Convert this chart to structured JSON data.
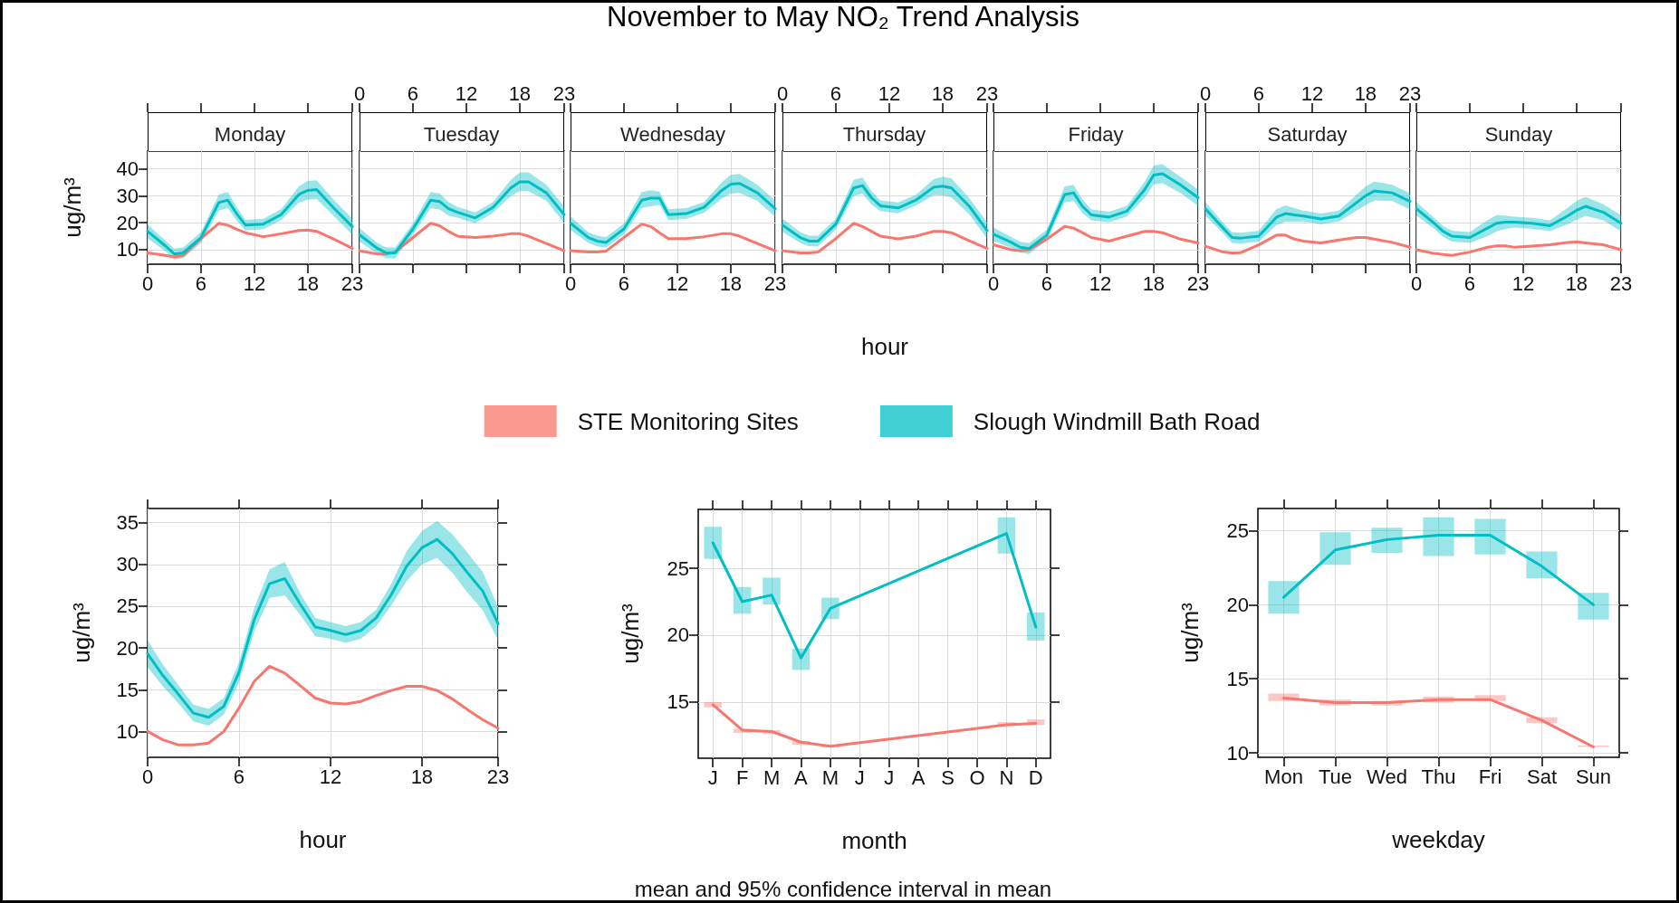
{
  "chart_data": [
    {
      "type": "line",
      "subtitle": "Monday",
      "ylabel": "ug/m³",
      "x": [
        0,
        2,
        3,
        4,
        6,
        8,
        9,
        10,
        11,
        13,
        15,
        17,
        18,
        19,
        21,
        23
      ],
      "xlim": [
        0,
        23
      ],
      "xticks": [
        0,
        6,
        12,
        18,
        23
      ],
      "ylim": [
        4.6,
        46.6
      ],
      "yticks": [
        10,
        20,
        30,
        40
      ],
      "grid": true,
      "series": [
        {
          "color": "#f8766d",
          "values": [
            8.8,
            7.9,
            7.3,
            7.9,
            14.1,
            19.8,
            19.1,
            17.6,
            16.3,
            14.8,
            15.9,
            17.1,
            17.3,
            16.8,
            13.8,
            10.5
          ]
        },
        {
          "color": "#00bfc4",
          "values": [
            16.8,
            11.4,
            8.4,
            8.8,
            14.5,
            27.5,
            28.4,
            23.4,
            19.1,
            19.5,
            23.0,
            30.5,
            32.0,
            32.3,
            25.2,
            18.6
          ],
          "lower": [
            14.3,
            9.4,
            6.4,
            6.8,
            12.5,
            24.5,
            25.4,
            20.9,
            17.1,
            17.5,
            21.0,
            27.5,
            28.5,
            28.8,
            22.2,
            15.6
          ],
          "upper": [
            19.3,
            13.4,
            10.4,
            10.8,
            16.5,
            30.5,
            31.4,
            25.9,
            21.1,
            21.5,
            25.0,
            33.5,
            35.5,
            35.8,
            28.2,
            21.6
          ]
        }
      ]
    },
    {
      "type": "line",
      "subtitle": "Tuesday",
      "x": [
        0,
        2,
        3,
        4,
        6,
        8,
        9,
        10,
        11,
        13,
        15,
        17,
        18,
        19,
        21,
        23
      ],
      "xlim": [
        0,
        23
      ],
      "xticks": [
        0,
        6,
        12,
        18,
        23
      ],
      "ylim": [
        4.6,
        46.6
      ],
      "yticks": [
        10,
        20,
        30,
        40
      ],
      "grid": true,
      "tick_labels": "x",
      "series": [
        {
          "color": "#f8766d",
          "values": [
            9.6,
            8.4,
            8.4,
            9.1,
            14.5,
            19.8,
            18.9,
            16.8,
            15.0,
            14.5,
            15.0,
            15.9,
            15.9,
            15.0,
            12.3,
            9.6
          ]
        },
        {
          "color": "#00bfc4",
          "values": [
            15.5,
            10.5,
            8.8,
            8.8,
            17.7,
            28.4,
            27.9,
            25.2,
            23.9,
            21.8,
            25.7,
            32.9,
            35.2,
            35.2,
            31.1,
            23.0
          ],
          "lower": [
            13.0,
            8.5,
            6.8,
            6.8,
            15.7,
            25.4,
            24.9,
            22.7,
            21.9,
            19.8,
            23.7,
            29.9,
            31.7,
            31.7,
            28.1,
            20.0
          ],
          "upper": [
            18.0,
            12.5,
            10.8,
            10.8,
            19.7,
            31.4,
            30.9,
            27.7,
            25.9,
            23.8,
            27.7,
            35.9,
            38.7,
            38.7,
            34.1,
            26.0
          ]
        }
      ]
    },
    {
      "type": "line",
      "subtitle": "Wednesday",
      "x": [
        0,
        2,
        3,
        4,
        6,
        8,
        9,
        10,
        11,
        13,
        15,
        17,
        18,
        19,
        21,
        23
      ],
      "xlim": [
        0,
        23
      ],
      "xticks": [
        0,
        6,
        12,
        18,
        23
      ],
      "ylim": [
        4.6,
        46.6
      ],
      "yticks": [
        10,
        20,
        30,
        40
      ],
      "grid": true,
      "tick_labels": "x",
      "series": [
        {
          "color": "#f8766d",
          "values": [
            9.6,
            9.1,
            9.1,
            9.5,
            14.5,
            19.5,
            18.6,
            16.3,
            14.1,
            14.1,
            14.8,
            15.9,
            15.9,
            15.0,
            12.3,
            9.6
          ]
        },
        {
          "color": "#00bfc4",
          "values": [
            19.8,
            14.5,
            13.2,
            12.7,
            17.7,
            28.4,
            29.1,
            29.1,
            23.0,
            23.4,
            25.7,
            32.0,
            34.3,
            34.6,
            31.1,
            25.2
          ],
          "lower": [
            17.3,
            12.5,
            11.2,
            10.7,
            15.7,
            25.4,
            26.1,
            26.6,
            21.0,
            21.4,
            23.7,
            29.0,
            30.8,
            31.1,
            28.1,
            22.2
          ],
          "upper": [
            22.3,
            16.5,
            15.2,
            14.7,
            19.7,
            31.4,
            32.1,
            31.6,
            25.0,
            25.4,
            27.7,
            35.0,
            37.8,
            38.1,
            34.1,
            28.2
          ]
        }
      ]
    },
    {
      "type": "line",
      "title": "November to May NO₂ Trend Analysis",
      "subtitle": "Thursday",
      "xlabel": "hour",
      "x": [
        0,
        2,
        3,
        4,
        6,
        8,
        9,
        10,
        11,
        13,
        15,
        17,
        18,
        19,
        21,
        23
      ],
      "xlim": [
        0,
        23
      ],
      "xticks": [
        0,
        6,
        12,
        18,
        23
      ],
      "ylim": [
        4.6,
        46.6
      ],
      "yticks": [
        10,
        20,
        30,
        40
      ],
      "grid": true,
      "tick_labels": "x",
      "series": [
        {
          "color": "#f8766d",
          "values": [
            9.6,
            8.8,
            8.8,
            9.1,
            14.1,
            19.8,
            18.6,
            16.8,
            15.0,
            14.0,
            15.0,
            16.8,
            16.8,
            16.3,
            13.3,
            10.4
          ]
        },
        {
          "color": "#00bfc4",
          "values": [
            19.1,
            14.5,
            13.2,
            13.2,
            19.5,
            32.9,
            33.8,
            29.3,
            26.3,
            25.5,
            28.4,
            33.2,
            33.6,
            32.9,
            26.1,
            17.1
          ],
          "lower": [
            16.6,
            12.5,
            11.2,
            11.2,
            17.5,
            29.9,
            30.8,
            26.8,
            24.3,
            23.5,
            26.4,
            30.2,
            30.1,
            29.4,
            23.1,
            14.1
          ],
          "upper": [
            21.6,
            16.5,
            15.2,
            15.2,
            21.5,
            35.9,
            36.8,
            31.8,
            28.3,
            27.5,
            30.4,
            36.2,
            37.1,
            36.4,
            29.1,
            20.1
          ]
        }
      ]
    },
    {
      "type": "line",
      "subtitle": "Friday",
      "x": [
        0,
        2,
        3,
        4,
        6,
        8,
        9,
        10,
        11,
        13,
        15,
        17,
        18,
        19,
        21,
        23
      ],
      "xlim": [
        0,
        23
      ],
      "xticks": [
        0,
        6,
        12,
        18,
        23
      ],
      "ylim": [
        4.6,
        46.6
      ],
      "yticks": [
        10,
        20,
        30,
        40
      ],
      "grid": true,
      "tick_labels": "x",
      "series": [
        {
          "color": "#f8766d",
          "values": [
            11.8,
            10.0,
            9.6,
            10.0,
            13.9,
            18.6,
            18.0,
            16.3,
            14.5,
            13.2,
            15.0,
            16.8,
            16.8,
            16.3,
            13.9,
            12.5
          ]
        },
        {
          "color": "#00bfc4",
          "values": [
            15.7,
            12.7,
            10.9,
            10.4,
            15.4,
            30.5,
            31.1,
            26.1,
            22.9,
            22.1,
            24.3,
            32.3,
            37.7,
            38.2,
            34.1,
            29.3
          ],
          "lower": [
            13.2,
            10.7,
            8.9,
            8.4,
            13.4,
            27.5,
            28.1,
            23.6,
            20.9,
            20.1,
            22.3,
            29.3,
            34.2,
            34.7,
            31.1,
            26.3
          ],
          "upper": [
            18.2,
            14.7,
            12.9,
            12.4,
            17.4,
            33.5,
            34.1,
            28.6,
            24.9,
            24.1,
            26.3,
            35.3,
            41.2,
            41.7,
            37.1,
            32.3
          ]
        }
      ]
    },
    {
      "type": "line",
      "subtitle": "Saturday",
      "x": [
        0,
        2,
        3,
        4,
        6,
        8,
        9,
        10,
        11,
        13,
        15,
        17,
        18,
        19,
        21,
        23
      ],
      "xlim": [
        0,
        23
      ],
      "xticks": [
        0,
        6,
        12,
        18,
        23
      ],
      "ylim": [
        4.6,
        46.6
      ],
      "yticks": [
        10,
        20,
        30,
        40
      ],
      "grid": true,
      "tick_labels": "x",
      "series": [
        {
          "color": "#f8766d",
          "values": [
            11.3,
            9.1,
            8.8,
            8.9,
            11.8,
            15.4,
            15.4,
            13.9,
            13.2,
            12.5,
            13.6,
            14.5,
            14.5,
            13.9,
            12.7,
            10.9
          ]
        },
        {
          "color": "#00bfc4",
          "values": [
            25.2,
            18.0,
            14.5,
            14.3,
            15.0,
            22.1,
            23.4,
            22.9,
            22.5,
            21.4,
            22.5,
            27.5,
            30.0,
            31.8,
            31.1,
            27.9
          ],
          "lower": [
            22.7,
            16.0,
            12.5,
            12.3,
            13.0,
            19.1,
            20.4,
            20.4,
            20.5,
            19.4,
            20.5,
            24.5,
            26.5,
            28.3,
            28.1,
            24.9
          ],
          "upper": [
            27.7,
            20.0,
            16.5,
            16.3,
            17.0,
            25.1,
            26.4,
            25.4,
            24.5,
            23.4,
            24.5,
            30.5,
            33.5,
            35.3,
            34.1,
            30.9
          ]
        }
      ]
    },
    {
      "type": "line",
      "subtitle": "Sunday",
      "x": [
        0,
        2,
        3,
        4,
        6,
        8,
        9,
        10,
        11,
        13,
        15,
        17,
        18,
        19,
        21,
        23
      ],
      "xlim": [
        0,
        23
      ],
      "xticks": [
        0,
        6,
        12,
        18,
        23
      ],
      "ylim": [
        4.6,
        46.6
      ],
      "yticks": [
        10,
        20,
        30,
        40
      ],
      "grid": true,
      "tick_labels": "x",
      "series": [
        {
          "color": "#f8766d",
          "values": [
            10.0,
            8.6,
            8.2,
            7.9,
            9.1,
            10.9,
            11.4,
            11.4,
            10.9,
            11.3,
            11.8,
            12.7,
            12.9,
            12.5,
            11.8,
            10.0
          ]
        },
        {
          "color": "#00bfc4",
          "values": [
            25.2,
            19.8,
            16.8,
            15.0,
            14.5,
            18.0,
            19.8,
            20.2,
            20.2,
            19.8,
            18.9,
            22.5,
            24.6,
            26.1,
            23.9,
            19.8
          ],
          "lower": [
            22.7,
            17.8,
            14.8,
            13.0,
            12.5,
            15.0,
            16.8,
            17.7,
            18.2,
            17.8,
            16.9,
            19.5,
            21.1,
            22.6,
            20.9,
            16.8
          ],
          "upper": [
            27.7,
            21.8,
            18.8,
            17.0,
            16.5,
            21.0,
            22.8,
            22.7,
            22.2,
            21.8,
            20.9,
            25.5,
            28.1,
            29.6,
            26.9,
            22.8
          ]
        }
      ]
    },
    {
      "type": "line",
      "xlabel": "hour",
      "ylabel": "ug/m³",
      "x": [
        0,
        1,
        2,
        3,
        4,
        5,
        6,
        7,
        8,
        9,
        10,
        11,
        12,
        13,
        14,
        15,
        16,
        17,
        18,
        19,
        20,
        21,
        22,
        23
      ],
      "xlim": [
        0,
        23
      ],
      "xticks": [
        0,
        6,
        12,
        18,
        23
      ],
      "ylim": [
        6.9,
        36.7
      ],
      "yticks": [
        10,
        15,
        20,
        25,
        30,
        35
      ],
      "grid": true,
      "series": [
        {
          "color": "#f8766d",
          "values": [
            10.0,
            9.0,
            8.4,
            8.4,
            8.6,
            10.0,
            12.8,
            16.0,
            17.8,
            17.0,
            15.5,
            14.0,
            13.4,
            13.3,
            13.6,
            14.3,
            14.9,
            15.4,
            15.4,
            14.9,
            13.9,
            12.6,
            11.4,
            10.4
          ]
        },
        {
          "color": "#00bfc4",
          "values": [
            19.3,
            16.7,
            14.5,
            12.2,
            11.7,
            13.0,
            17.1,
            23.4,
            27.7,
            28.3,
            25.3,
            22.5,
            22.1,
            21.6,
            22.1,
            23.6,
            26.4,
            29.8,
            32.0,
            33.0,
            31.3,
            29.0,
            26.8,
            22.9
          ],
          "lower": [
            17.7,
            15.4,
            13.4,
            11.2,
            10.7,
            12.0,
            15.9,
            22.0,
            26.0,
            26.3,
            24.0,
            21.4,
            21.1,
            20.6,
            21.1,
            22.6,
            25.1,
            28.0,
            30.0,
            30.8,
            29.0,
            26.6,
            24.5,
            20.9
          ],
          "upper": [
            20.9,
            18.0,
            15.6,
            13.2,
            12.7,
            14.0,
            18.3,
            24.8,
            29.4,
            30.3,
            26.6,
            23.6,
            23.1,
            22.6,
            23.1,
            24.6,
            27.7,
            31.6,
            34.0,
            35.2,
            33.6,
            31.4,
            29.1,
            24.9
          ]
        }
      ]
    },
    {
      "type": "line",
      "xlabel": "month",
      "ylabel": "ug/m³",
      "categories": [
        "J",
        "F",
        "M",
        "A",
        "M",
        "J",
        "J",
        "A",
        "S",
        "O",
        "N",
        "D"
      ],
      "ylim": [
        10.8,
        29.4
      ],
      "yticks": [
        15,
        20,
        25
      ],
      "grid": true,
      "legend": "top",
      "annotations": [
        "mean and 95% confidence interval in mean"
      ],
      "series": [
        {
          "name": "STE Monitoring Sites",
          "color": "#f8766d",
          "values": [
            14.8,
            12.9,
            12.8,
            12.0,
            11.7,
            null,
            null,
            null,
            null,
            null,
            13.3,
            13.4
          ],
          "errors": [
            [
              14.6,
              15.0
            ],
            [
              12.7,
              13.0
            ],
            [
              12.6,
              12.9
            ],
            [
              11.8,
              12.1
            ],
            [
              11.6,
              11.8
            ],
            null,
            null,
            null,
            null,
            null,
            [
              13.2,
              13.5
            ],
            [
              13.3,
              13.7
            ]
          ]
        },
        {
          "name": "Slough Windmill Bath Road",
          "color": "#00bfc4",
          "values": [
            26.9,
            22.5,
            23.0,
            18.3,
            22.0,
            null,
            null,
            null,
            null,
            null,
            27.6,
            20.6
          ],
          "errors": [
            [
              25.7,
              28.1
            ],
            [
              21.6,
              23.6
            ],
            [
              22.3,
              24.3
            ],
            [
              17.4,
              19.0
            ],
            [
              21.2,
              22.8
            ],
            null,
            null,
            null,
            null,
            null,
            [
              26.1,
              28.8
            ],
            [
              19.6,
              21.7
            ]
          ]
        }
      ]
    },
    {
      "type": "line",
      "xlabel": "weekday",
      "ylabel": "ug/m³",
      "categories": [
        "Mon",
        "Tue",
        "Wed",
        "Thu",
        "Fri",
        "Sat",
        "Sun"
      ],
      "ylim": [
        9.7,
        26.5
      ],
      "yticks": [
        10,
        15,
        20,
        25
      ],
      "grid": true,
      "series": [
        {
          "color": "#f8766d",
          "values": [
            13.7,
            13.4,
            13.4,
            13.6,
            13.6,
            12.2,
            10.4
          ],
          "errors": [
            [
              13.5,
              14.0
            ],
            [
              13.2,
              13.6
            ],
            [
              13.2,
              13.5
            ],
            [
              13.4,
              13.8
            ],
            [
              13.5,
              13.9
            ],
            [
              12.0,
              12.4
            ],
            [
              10.4,
              10.5
            ]
          ]
        },
        {
          "color": "#00bfc4",
          "values": [
            20.5,
            23.7,
            24.4,
            24.7,
            24.7,
            22.6,
            20.0
          ],
          "errors": [
            [
              19.4,
              21.6
            ],
            [
              22.7,
              24.9
            ],
            [
              23.5,
              25.2
            ],
            [
              23.3,
              25.9
            ],
            [
              23.4,
              25.8
            ],
            [
              21.8,
              23.6
            ],
            [
              19.0,
              20.8
            ]
          ]
        }
      ]
    }
  ]
}
